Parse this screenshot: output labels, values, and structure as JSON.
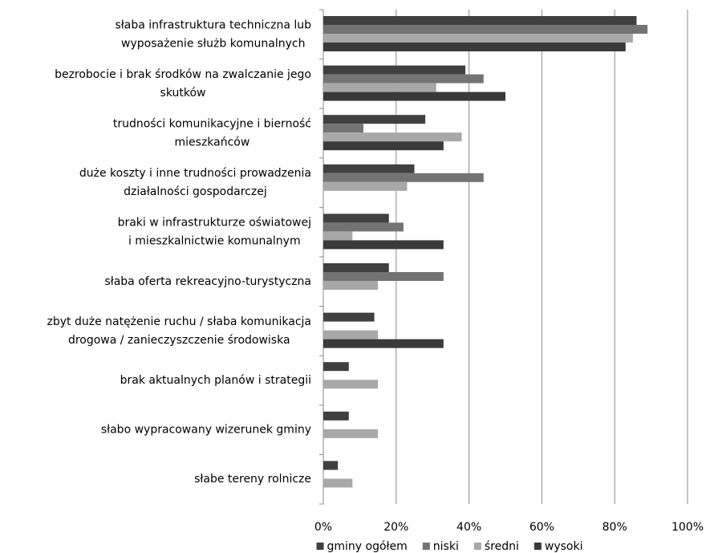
{
  "chart_data": {
    "type": "bar",
    "orientation": "horizontal",
    "categories": [
      [
        "słaba infrastruktura techniczna lub",
        "wyposażenie służb komunalnych"
      ],
      [
        "bezrobocie i brak środków na zwalczanie jego",
        "skutków"
      ],
      [
        "trudności komunikacyjne i bierność",
        "mieszkańców"
      ],
      [
        "duże koszty i inne trudności prowadzenia",
        "działalności gospodarczej"
      ],
      [
        "braki w infrastrukturze oświatowej",
        "i  mieszkalnictwie komunalnym"
      ],
      [
        "słaba oferta rekreacyjno-turystyczna"
      ],
      [
        "zbyt duże natężenie ruchu / słaba komunikacja",
        "drogowa / zanieczyszczenie środowiska"
      ],
      [
        "brak aktualnych planów i strategii"
      ],
      [
        "słabo wypracowany wizerunek gminy"
      ],
      [
        "słabe tereny rolnicze"
      ]
    ],
    "series": [
      {
        "name": "gminy ogółem",
        "color": "#404040",
        "values": [
          86,
          39,
          28,
          25,
          18,
          18,
          14,
          7,
          7,
          4
        ]
      },
      {
        "name": "niski",
        "color": "#737373",
        "values": [
          89,
          44,
          11,
          44,
          22,
          33,
          0,
          0,
          0,
          0
        ]
      },
      {
        "name": "średni",
        "color": "#a8a8a8",
        "values": [
          85,
          31,
          38,
          23,
          8,
          15,
          15,
          15,
          15,
          8
        ]
      },
      {
        "name": "wysoki",
        "color": "#3a3a3a",
        "values": [
          83,
          50,
          33,
          0,
          33,
          0,
          33,
          0,
          0,
          0
        ]
      }
    ],
    "xlim": [
      0,
      100
    ],
    "xticks": [
      {
        "value": 0,
        "label": "0%"
      },
      {
        "value": 20,
        "label": "20%"
      },
      {
        "value": 40,
        "label": "40%"
      },
      {
        "value": 60,
        "label": "60%"
      },
      {
        "value": 80,
        "label": "80%"
      },
      {
        "value": 100,
        "label": "100%"
      }
    ],
    "grid": true,
    "legend": "bottom"
  }
}
